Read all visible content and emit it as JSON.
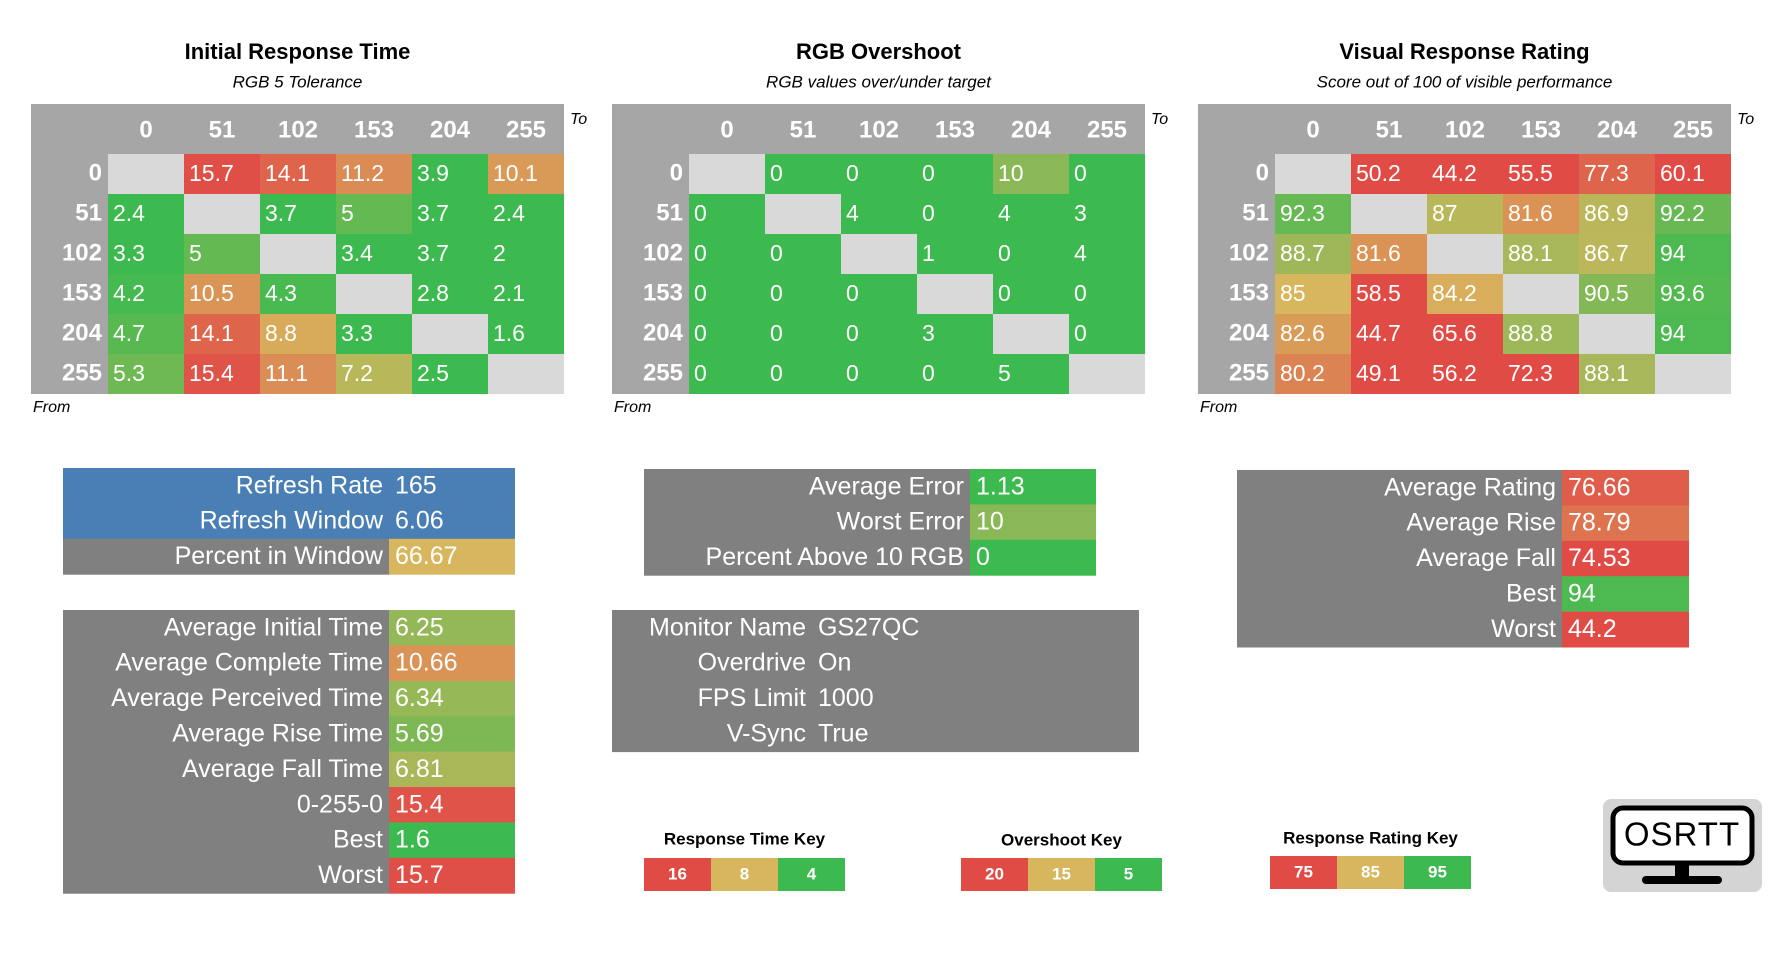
{
  "matrices": [
    {
      "title": "Initial Response Time",
      "subtitle": "RGB 5 Tolerance",
      "to": "To",
      "from": "From",
      "key": 0,
      "columns": [
        0,
        51,
        102,
        153,
        204,
        255
      ],
      "rows": [
        0,
        51,
        102,
        153,
        204,
        255
      ],
      "cells": [
        [
          null,
          15.7,
          14.1,
          11.2,
          3.9,
          10.1
        ],
        [
          2.4,
          null,
          3.7,
          5,
          3.7,
          2.4
        ],
        [
          3.3,
          5,
          null,
          3.4,
          3.7,
          2
        ],
        [
          4.2,
          10.5,
          4.3,
          null,
          2.8,
          2.1
        ],
        [
          4.7,
          14.1,
          8.8,
          3.3,
          null,
          1.6
        ],
        [
          5.3,
          15.4,
          11.1,
          7.2,
          2.5,
          null
        ]
      ]
    },
    {
      "title": "RGB Overshoot",
      "subtitle": "RGB values over/under target",
      "to": "To",
      "from": "From",
      "key": 1,
      "columns": [
        0,
        51,
        102,
        153,
        204,
        255
      ],
      "rows": [
        0,
        51,
        102,
        153,
        204,
        255
      ],
      "cells": [
        [
          null,
          0,
          0,
          0,
          10,
          0
        ],
        [
          0,
          null,
          4,
          0,
          4,
          3
        ],
        [
          0,
          0,
          null,
          1,
          0,
          4
        ],
        [
          0,
          0,
          0,
          null,
          0,
          0
        ],
        [
          0,
          0,
          0,
          3,
          null,
          0
        ],
        [
          0,
          0,
          0,
          0,
          5,
          null
        ]
      ]
    },
    {
      "title": "Visual Response Rating",
      "subtitle": "Score out of 100 of visible performance",
      "to": "To",
      "from": "From",
      "key": 2,
      "columns": [
        0,
        51,
        102,
        153,
        204,
        255
      ],
      "rows": [
        0,
        51,
        102,
        153,
        204,
        255
      ],
      "cells": [
        [
          null,
          50.2,
          44.2,
          55.5,
          77.3,
          60.1
        ],
        [
          92.3,
          null,
          87,
          81.6,
          86.9,
          92.2
        ],
        [
          88.7,
          81.6,
          null,
          88.1,
          86.7,
          94
        ],
        [
          85,
          58.5,
          84.2,
          null,
          90.5,
          93.6
        ],
        [
          82.6,
          44.7,
          65.6,
          88.8,
          null,
          94
        ],
        [
          80.2,
          49.1,
          56.2,
          72.3,
          88.1,
          null
        ]
      ]
    }
  ],
  "info_boxes": [
    {
      "rows": [
        {
          "label": "Refresh Rate",
          "value": 165,
          "label_color": "#4a7fb5",
          "value_color": "#4a7fb5"
        },
        {
          "label": "Refresh Window",
          "value": 6.06,
          "label_color": "#4a7fb5",
          "value_color": "#4a7fb5"
        },
        {
          "label": "Percent in Window",
          "value": 66.67,
          "label_color": "#808080",
          "value_color": "#d7b65d"
        }
      ]
    },
    {
      "rows": [
        {
          "label": "Average Initial Time",
          "value": 6.25,
          "key": 0
        },
        {
          "label": "Average Complete Time",
          "value": 10.66,
          "key": 0
        },
        {
          "label": "Average Perceived Time",
          "value": 6.34,
          "key": 0
        },
        {
          "label": "Average Rise Time",
          "value": 5.69,
          "key": 0
        },
        {
          "label": "Average Fall Time",
          "value": 6.81,
          "key": 0
        },
        {
          "label": "0-255-0",
          "value": 15.4,
          "key": 0
        },
        {
          "label": "Best",
          "value": 1.6,
          "key": 0
        },
        {
          "label": "Worst",
          "value": 15.7,
          "key": 0
        }
      ]
    },
    {
      "rows": [
        {
          "label": "Average Error",
          "value": 1.13,
          "key": 1
        },
        {
          "label": "Worst Error",
          "value": 10,
          "key": 1
        },
        {
          "label": "Percent Above 10 RGB",
          "value": 0,
          "key": 1
        }
      ]
    },
    {
      "rows": [
        {
          "label": "Monitor Name",
          "value": "GS27QC",
          "value_color": "#808080"
        },
        {
          "label": "Overdrive",
          "value": "On",
          "value_color": "#808080"
        },
        {
          "label": "FPS Limit",
          "value": 1000,
          "value_color": "#808080"
        },
        {
          "label": "V-Sync",
          "value": "True",
          "value_color": "#808080"
        }
      ]
    },
    {
      "rows": [
        {
          "label": "Average Rating",
          "value": 76.66,
          "key": 2
        },
        {
          "label": "Average Rise",
          "value": 78.79,
          "key": 2
        },
        {
          "label": "Average Fall",
          "value": 74.53,
          "key": 2
        },
        {
          "label": "Best",
          "value": 94,
          "key": 2
        },
        {
          "label": "Worst",
          "value": 44.2,
          "key": 2
        }
      ]
    }
  ],
  "keys": [
    {
      "title": "Response Time Key",
      "steps": [
        {
          "value": 16,
          "color": "#e04b46"
        },
        {
          "value": 8,
          "color": "#d7b65d"
        },
        {
          "value": 4,
          "color": "#3dba4f"
        }
      ]
    },
    {
      "title": "Overshoot Key",
      "steps": [
        {
          "value": 20,
          "color": "#e04b46"
        },
        {
          "value": 15,
          "color": "#d7b65d"
        },
        {
          "value": 5,
          "color": "#3dba4f"
        }
      ]
    },
    {
      "title": "Response Rating Key",
      "steps": [
        {
          "value": 75,
          "color": "#e04b46"
        },
        {
          "value": 85,
          "color": "#d7b65d"
        },
        {
          "value": 95,
          "color": "#3dba4f"
        }
      ]
    }
  ],
  "logo": "OSRTT"
}
